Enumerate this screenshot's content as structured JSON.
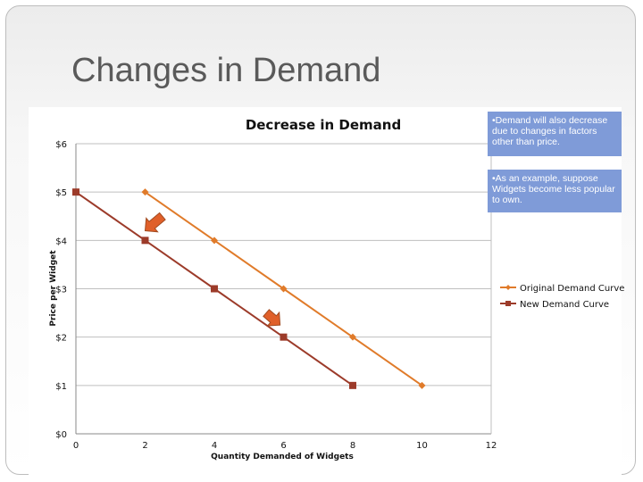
{
  "slide": {
    "title": "Changes in Demand",
    "callouts": [
      "•Demand will also decrease due to changes in factors other than price.",
      "•As an example, suppose Widgets become less popular to own."
    ]
  },
  "chart_data": {
    "type": "line",
    "title": "Decrease in Demand",
    "xlabel": "Quantity Demanded of Widgets",
    "ylabel": "Price per Widget",
    "xlim": [
      0,
      12
    ],
    "ylim": [
      0,
      6
    ],
    "x_ticks": [
      "0",
      "2",
      "4",
      "6",
      "8",
      "10",
      "12"
    ],
    "y_ticks": [
      "$0",
      "$1",
      "$2",
      "$3",
      "$4",
      "$5",
      "$6"
    ],
    "grid": "horizontal",
    "legend_position": "right",
    "series": [
      {
        "name": "Original Demand Curve",
        "color": "#e07b2a",
        "marker": "diamond",
        "points": [
          [
            2,
            5
          ],
          [
            4,
            4
          ],
          [
            6,
            3
          ],
          [
            8,
            2
          ],
          [
            10,
            1
          ]
        ]
      },
      {
        "name": "New Demand Curve",
        "color": "#9c3b2a",
        "marker": "square",
        "points": [
          [
            0,
            5
          ],
          [
            2,
            4
          ],
          [
            4,
            3
          ],
          [
            6,
            2
          ],
          [
            8,
            1
          ]
        ]
      }
    ],
    "annotations": [
      {
        "type": "arrow",
        "color": "#e0602a",
        "from": [
          2.5,
          4.5
        ],
        "to": [
          2.0,
          4.2
        ]
      },
      {
        "type": "arrow",
        "color": "#e0602a",
        "from": [
          5.5,
          2.5
        ],
        "to": [
          5.9,
          2.25
        ]
      }
    ]
  }
}
